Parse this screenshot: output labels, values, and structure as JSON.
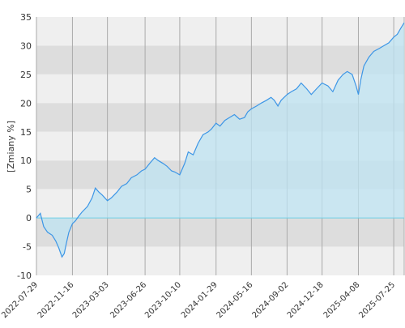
{
  "chart_data": {
    "type": "area",
    "ylabel": "[Zmiany %]",
    "xlabel": "",
    "title": "",
    "ylim": [
      -10,
      35
    ],
    "y_ticks": [
      35,
      30,
      25,
      20,
      15,
      10,
      5,
      0,
      -5,
      -10
    ],
    "x_range": [
      "2022-07-29",
      "2025-08-26"
    ],
    "x_ticks": [
      "2022-07-29",
      "2022-11-16",
      "2023-03-03",
      "2023-06-26",
      "2023-10-10",
      "2024-01-29",
      "2024-05-16",
      "2024-09-02",
      "2024-12-18",
      "2025-04-08",
      "2025-07-25"
    ],
    "grid": true,
    "legend": "none",
    "series": [
      {
        "x": [
          "2022-07-29",
          "2022-08-10",
          "2022-08-20",
          "2022-09-01",
          "2022-09-15",
          "2022-09-26",
          "2022-10-05",
          "2022-10-15",
          "2022-10-22",
          "2022-10-28",
          "2022-11-05",
          "2022-11-16",
          "2022-11-25",
          "2022-12-05",
          "2022-12-15",
          "2023-01-01",
          "2023-01-15",
          "2023-01-25",
          "2023-02-05",
          "2023-02-15",
          "2023-03-03",
          "2023-03-15",
          "2023-04-01",
          "2023-04-15",
          "2023-05-01",
          "2023-05-15",
          "2023-06-01",
          "2023-06-15",
          "2023-06-26",
          "2023-07-10",
          "2023-07-25",
          "2023-08-05",
          "2023-08-20",
          "2023-09-01",
          "2023-09-15",
          "2023-09-25",
          "2023-10-10",
          "2023-10-25",
          "2023-11-05",
          "2023-11-20",
          "2023-12-05",
          "2023-12-20",
          "2024-01-05",
          "2024-01-15",
          "2024-01-29",
          "2024-02-10",
          "2024-02-25",
          "2024-03-10",
          "2024-03-25",
          "2024-04-10",
          "2024-04-25",
          "2024-05-05",
          "2024-05-16",
          "2024-06-01",
          "2024-06-15",
          "2024-07-01",
          "2024-07-15",
          "2024-07-25",
          "2024-08-05",
          "2024-08-15",
          "2024-09-02",
          "2024-09-15",
          "2024-10-01",
          "2024-10-15",
          "2024-11-01",
          "2024-11-15",
          "2024-12-01",
          "2024-12-18",
          "2025-01-05",
          "2025-01-20",
          "2025-02-05",
          "2025-02-20",
          "2025-03-05",
          "2025-03-20",
          "2025-04-01",
          "2025-04-08",
          "2025-04-15",
          "2025-04-25",
          "2025-05-10",
          "2025-05-25",
          "2025-06-10",
          "2025-06-25",
          "2025-07-10",
          "2025-07-25",
          "2025-08-05",
          "2025-08-15",
          "2025-08-26"
        ],
        "values": [
          0.0,
          0.8,
          -1.5,
          -2.5,
          -3.0,
          -4.0,
          -5.2,
          -6.8,
          -6.2,
          -4.5,
          -2.5,
          -1.0,
          -0.5,
          0.3,
          1.0,
          2.0,
          3.5,
          5.2,
          4.5,
          4.0,
          3.0,
          3.5,
          4.5,
          5.5,
          6.0,
          7.0,
          7.5,
          8.2,
          8.5,
          9.5,
          10.5,
          10.0,
          9.5,
          9.0,
          8.2,
          8.0,
          7.5,
          9.5,
          11.5,
          11.0,
          13.0,
          14.5,
          15.0,
          15.5,
          16.5,
          16.0,
          17.0,
          17.5,
          18.0,
          17.2,
          17.5,
          18.5,
          19.0,
          19.5,
          20.0,
          20.5,
          21.0,
          20.5,
          19.5,
          20.5,
          21.5,
          22.0,
          22.5,
          23.5,
          22.5,
          21.5,
          22.5,
          23.5,
          23.0,
          22.0,
          24.0,
          25.0,
          25.5,
          25.0,
          23.0,
          21.5,
          24.0,
          26.5,
          28.0,
          29.0,
          29.5,
          30.0,
          30.5,
          31.5,
          32.0,
          33.0,
          34.0
        ]
      }
    ]
  }
}
